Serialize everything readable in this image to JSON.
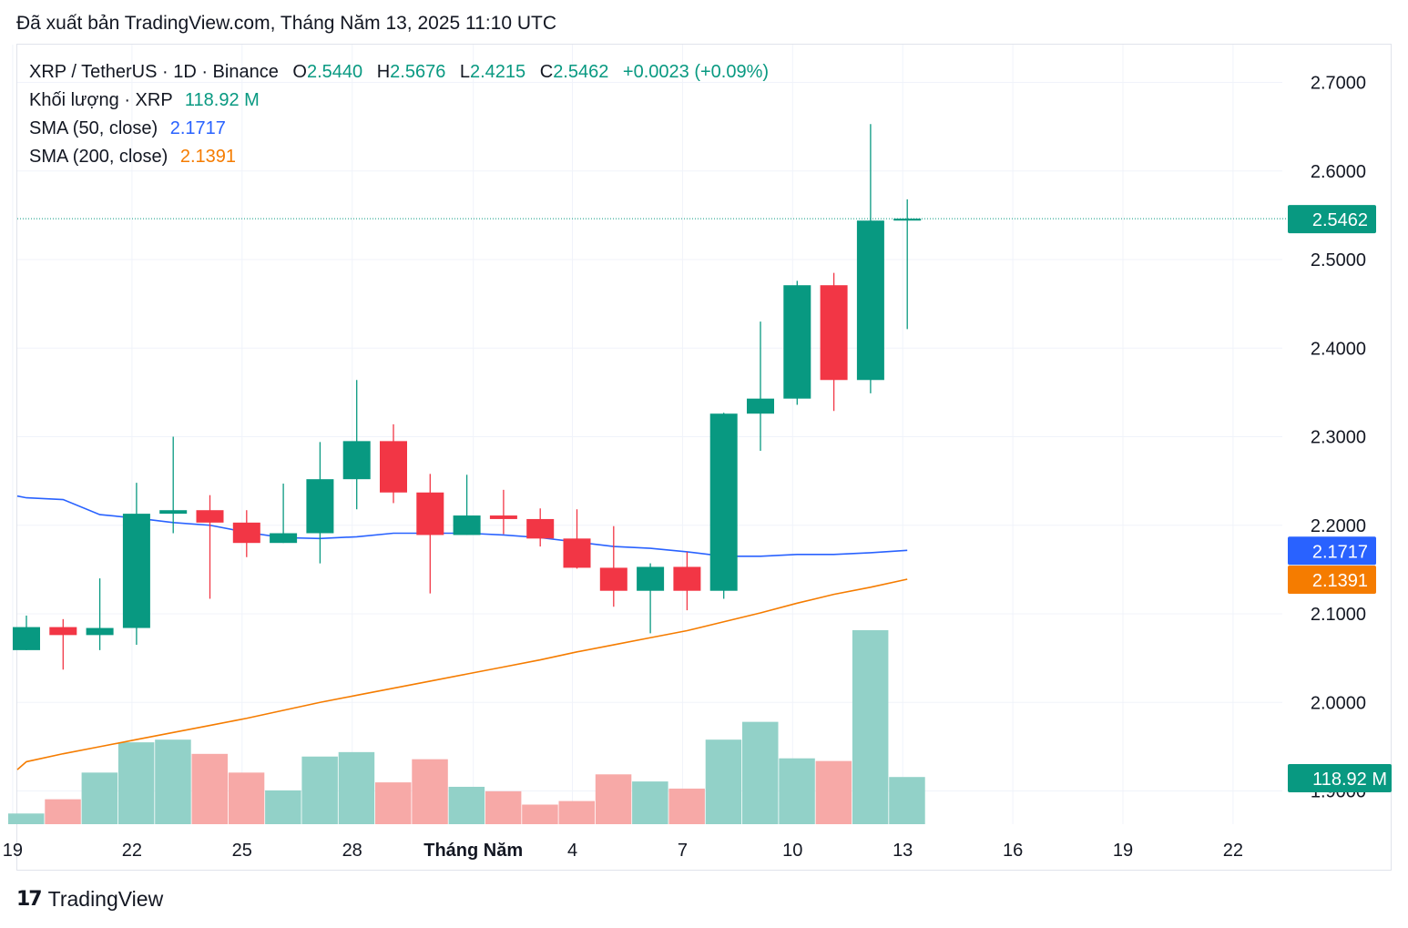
{
  "header": {
    "published": "Đã xuất bản TradingView.com, Tháng Năm 13, 2025 11:10 UTC"
  },
  "legend": {
    "symbol": "XRP / TetherUS · 1D · Binance",
    "o_label": "O",
    "o_value": "2.5440",
    "h_label": "H",
    "h_value": "2.5676",
    "l_label": "L",
    "l_value": "2.4215",
    "c_label": "C",
    "c_value": "2.5462",
    "change": "+0.0023 (+0.09%)",
    "volume_label": "Khối lượng · XRP",
    "volume_value": "118.92 M",
    "sma50_label": "SMA (50, close)",
    "sma50_value": "2.1717",
    "sma200_label": "SMA (200, close)",
    "sma200_value": "2.1391"
  },
  "footer": {
    "brand": "TradingView",
    "logo_text": "17"
  },
  "colors": {
    "up": "#089981",
    "down": "#f23645",
    "vol_up": "#92d1c8",
    "vol_down": "#f7a9a7",
    "sma50": "#2962ff",
    "sma200": "#f57c00",
    "grid": "#f0f3fa",
    "text": "#131722"
  },
  "chart_data": {
    "type": "candlestick",
    "y_axis": {
      "range": [
        1.87,
        2.74
      ],
      "ticks": [
        "2.7000",
        "2.6000",
        "2.5000",
        "2.4000",
        "2.3000",
        "2.2000",
        "2.1000",
        "2.0000",
        "1.9000"
      ]
    },
    "x_axis": {
      "labels": [
        "19",
        "22",
        "25",
        "28",
        "Tháng Năm",
        "4",
        "7",
        "10",
        "13",
        "16",
        "19",
        "22"
      ]
    },
    "last_price_label": "2.5462",
    "sma50_label": "2.1717",
    "sma200_label": "2.1391",
    "volume_label": "118.92 M",
    "volume_max": 250,
    "candles": [
      {
        "o": 2.059,
        "h": 2.098,
        "l": 2.059,
        "c": 2.085
      },
      {
        "o": 2.085,
        "h": 2.094,
        "l": 2.037,
        "c": 2.076
      },
      {
        "o": 2.076,
        "h": 2.14,
        "l": 2.059,
        "c": 2.084
      },
      {
        "o": 2.084,
        "h": 2.248,
        "l": 2.065,
        "c": 2.213
      },
      {
        "o": 2.213,
        "h": 2.3,
        "l": 2.191,
        "c": 2.217
      },
      {
        "o": 2.217,
        "h": 2.234,
        "l": 2.117,
        "c": 2.203
      },
      {
        "o": 2.203,
        "h": 2.217,
        "l": 2.164,
        "c": 2.18
      },
      {
        "o": 2.18,
        "h": 2.247,
        "l": 2.18,
        "c": 2.191
      },
      {
        "o": 2.191,
        "h": 2.294,
        "l": 2.157,
        "c": 2.252
      },
      {
        "o": 2.252,
        "h": 2.364,
        "l": 2.218,
        "c": 2.295
      },
      {
        "o": 2.295,
        "h": 2.314,
        "l": 2.225,
        "c": 2.237
      },
      {
        "o": 2.237,
        "h": 2.258,
        "l": 2.123,
        "c": 2.189
      },
      {
        "o": 2.189,
        "h": 2.257,
        "l": 2.189,
        "c": 2.211
      },
      {
        "o": 2.211,
        "h": 2.24,
        "l": 2.19,
        "c": 2.207
      },
      {
        "o": 2.207,
        "h": 2.219,
        "l": 2.176,
        "c": 2.185
      },
      {
        "o": 2.185,
        "h": 2.218,
        "l": 2.151,
        "c": 2.152
      },
      {
        "o": 2.152,
        "h": 2.199,
        "l": 2.108,
        "c": 2.126
      },
      {
        "o": 2.126,
        "h": 2.157,
        "l": 2.078,
        "c": 2.153
      },
      {
        "o": 2.153,
        "h": 2.17,
        "l": 2.104,
        "c": 2.126
      },
      {
        "o": 2.126,
        "h": 2.327,
        "l": 2.117,
        "c": 2.326
      },
      {
        "o": 2.326,
        "h": 2.43,
        "l": 2.284,
        "c": 2.343
      },
      {
        "o": 2.343,
        "h": 2.476,
        "l": 2.336,
        "c": 2.471
      },
      {
        "o": 2.471,
        "h": 2.485,
        "l": 2.329,
        "c": 2.364
      },
      {
        "o": 2.364,
        "h": 2.653,
        "l": 2.349,
        "c": 2.544
      },
      {
        "o": 2.544,
        "h": 2.568,
        "l": 2.4215,
        "c": 2.5462
      }
    ],
    "volumes": [
      12,
      28,
      58,
      92,
      95,
      79,
      58,
      38,
      76,
      81,
      47,
      73,
      42,
      37,
      22,
      26,
      56,
      48,
      40,
      95,
      115,
      74,
      71,
      218,
      53
    ],
    "sma50": [
      2.231,
      2.229,
      2.212,
      2.208,
      2.203,
      2.2,
      2.192,
      2.186,
      2.185,
      2.187,
      2.191,
      2.191,
      2.191,
      2.189,
      2.186,
      2.181,
      2.176,
      2.174,
      2.17,
      2.165,
      2.165,
      2.167,
      2.167,
      2.169,
      2.1717
    ],
    "sma200": [
      1.933,
      1.942,
      1.95,
      1.958,
      1.966,
      1.974,
      1.982,
      1.991,
      2.0,
      2.008,
      2.016,
      2.024,
      2.032,
      2.04,
      2.048,
      2.057,
      2.065,
      2.073,
      2.081,
      2.091,
      2.101,
      2.112,
      2.122,
      2.13,
      2.1391
    ]
  }
}
